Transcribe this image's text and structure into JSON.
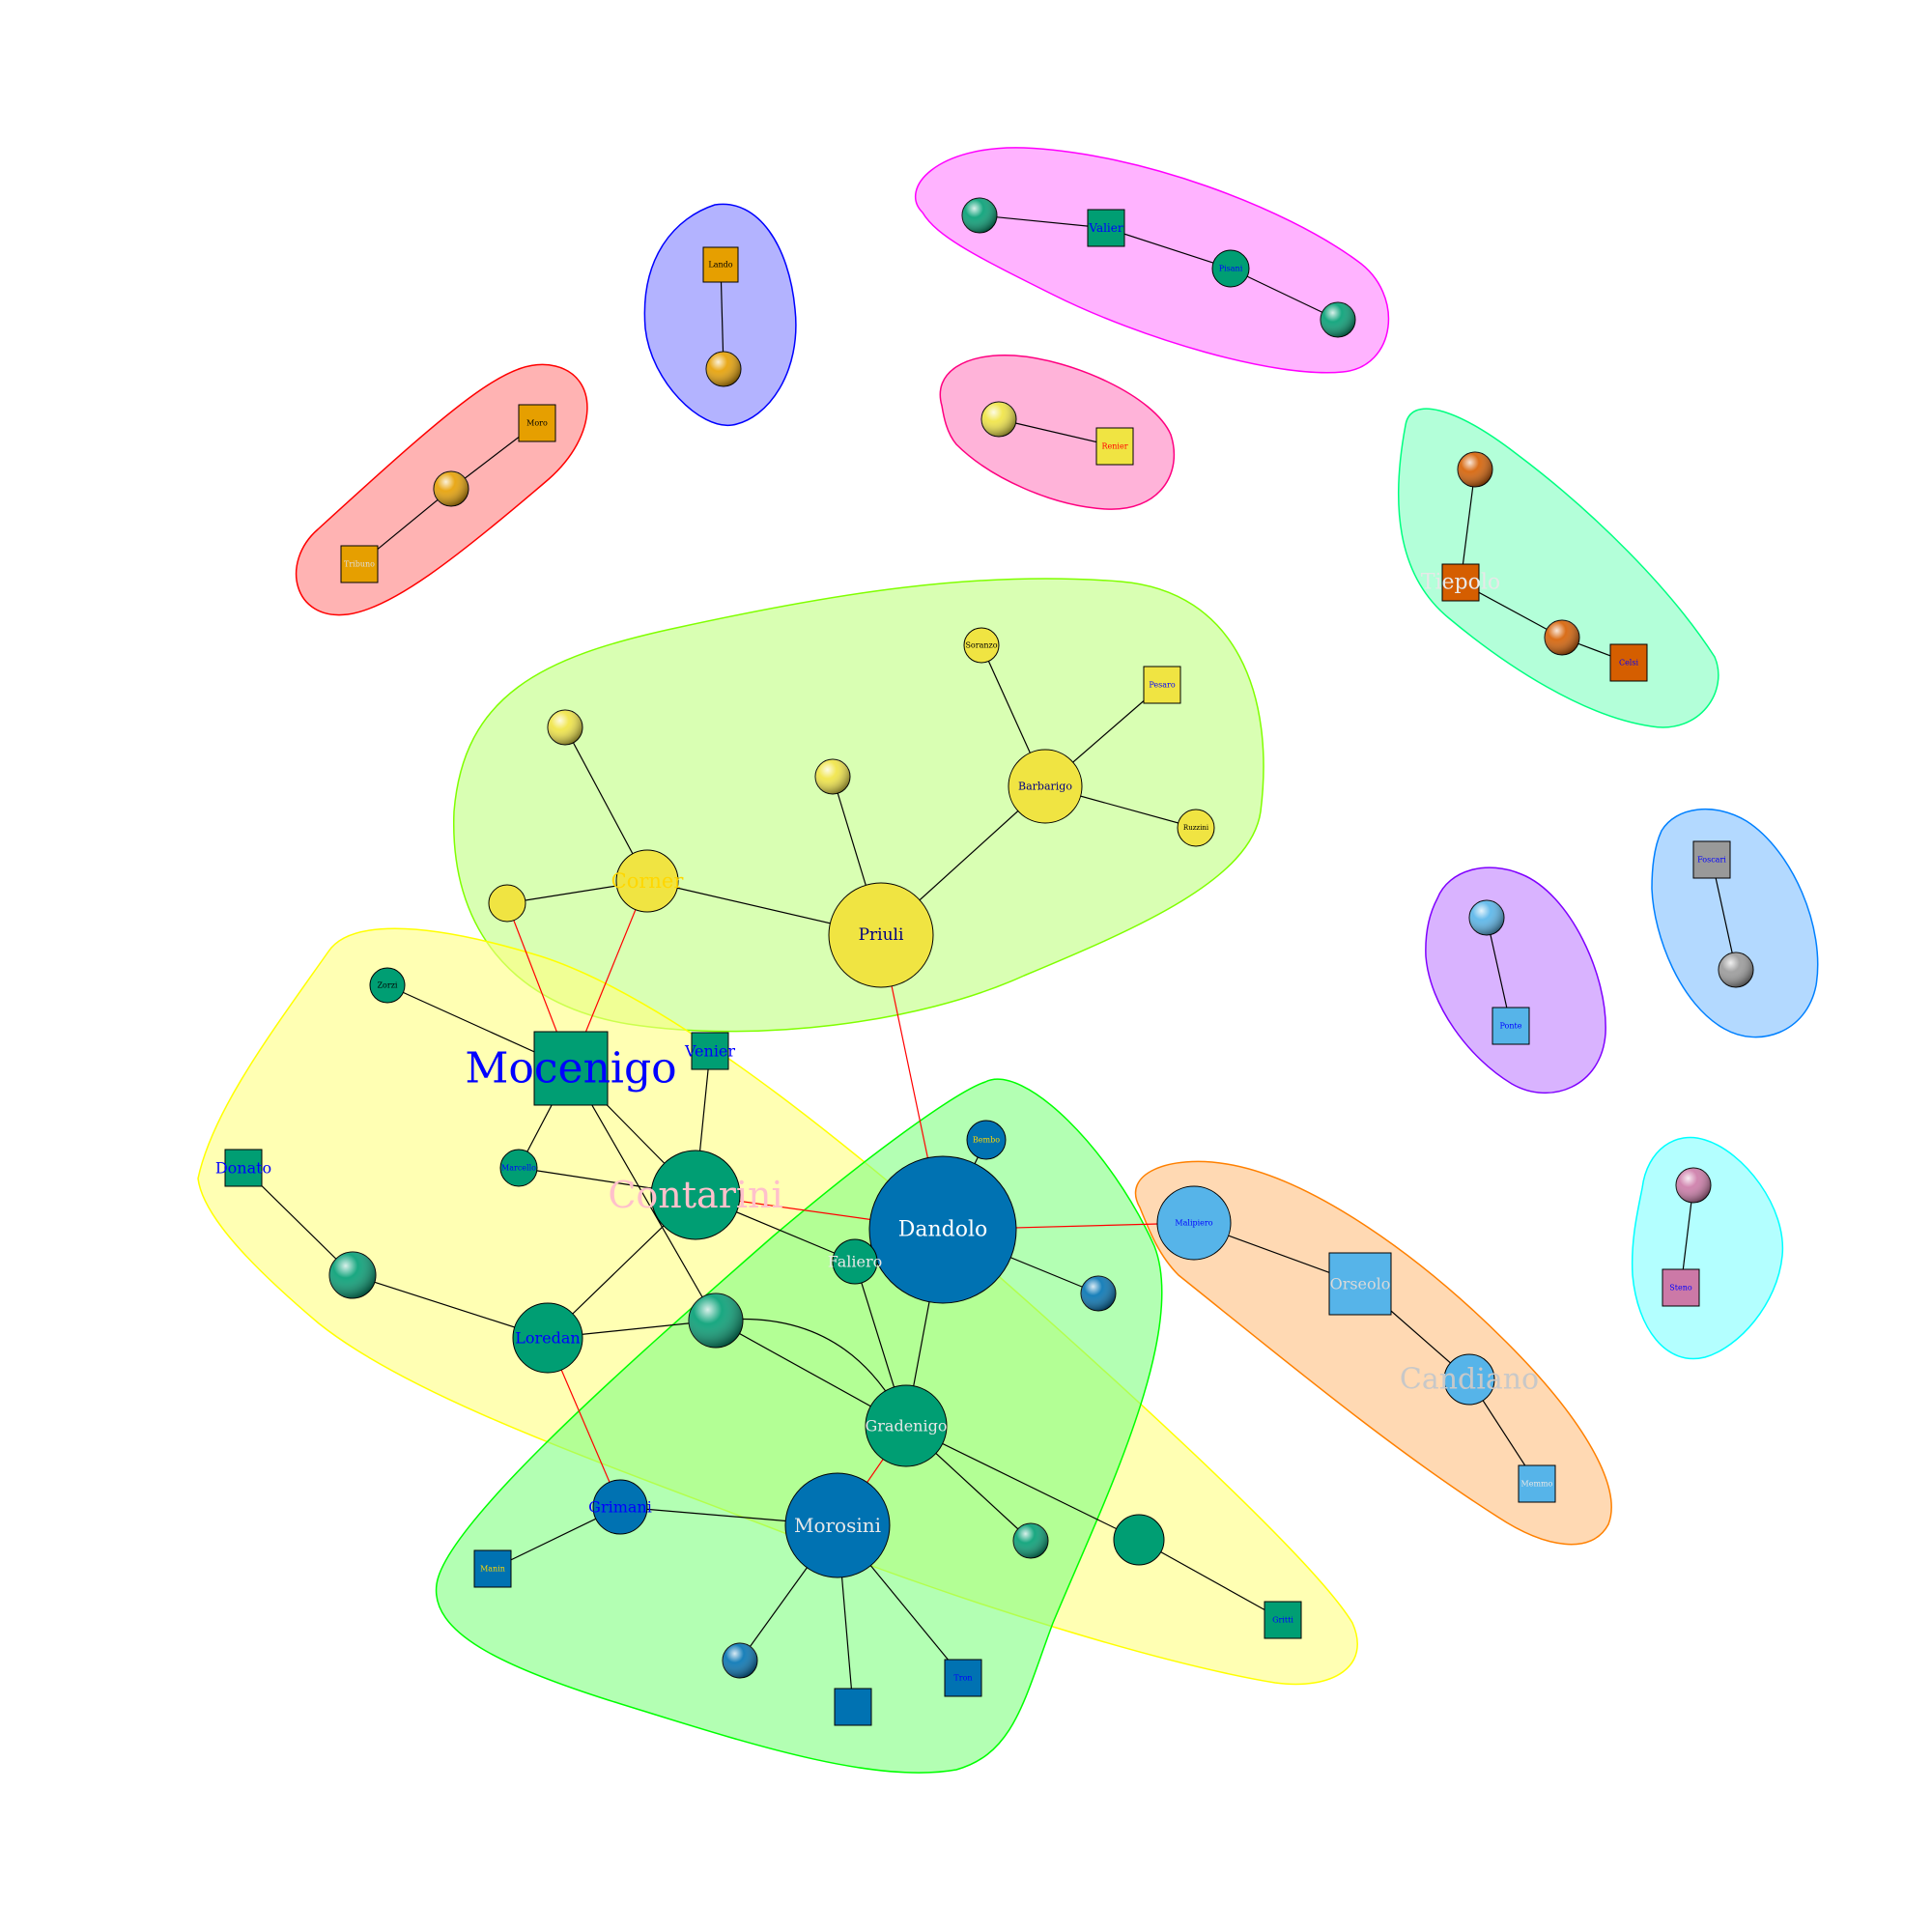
{
  "groups": [
    {
      "id": "g-red",
      "fill": "#ff8080",
      "stroke": "#ff0000"
    },
    {
      "id": "g-blue",
      "fill": "#8080ff",
      "stroke": "#0000ff"
    },
    {
      "id": "g-magenta",
      "fill": "#ff80ff",
      "stroke": "#ff00ff"
    },
    {
      "id": "g-pink",
      "fill": "#ff80c0",
      "stroke": "#ff0080"
    },
    {
      "id": "g-aqua",
      "fill": "#80ffc0",
      "stroke": "#00ff80"
    },
    {
      "id": "g-lime",
      "fill": "#c0ff80",
      "stroke": "#80ff00"
    },
    {
      "id": "g-yellow",
      "fill": "#ffff80",
      "stroke": "#ffff00"
    },
    {
      "id": "g-green",
      "fill": "#80ff80",
      "stroke": "#00ff00"
    },
    {
      "id": "g-orange",
      "fill": "#ffc080",
      "stroke": "#ff8000"
    },
    {
      "id": "g-purple",
      "fill": "#c080ff",
      "stroke": "#8000ff"
    },
    {
      "id": "g-sky",
      "fill": "#80c0ff",
      "stroke": "#0080ff"
    },
    {
      "id": "g-cyan",
      "fill": "#80ffff",
      "stroke": "#00ffff"
    }
  ],
  "nodes": [
    {
      "id": "moro",
      "label": "Moro",
      "shape": "square",
      "color": "#e69f00",
      "label_color": "#000000"
    },
    {
      "id": "red-ball",
      "label": "",
      "shape": "sphere",
      "color": "#e69f00",
      "label_color": "#000000"
    },
    {
      "id": "tribuno",
      "label": "Tribuno",
      "shape": "square",
      "color": "#e69f00",
      "label_color": "#dddddd"
    },
    {
      "id": "lando",
      "label": "Lando",
      "shape": "square",
      "color": "#e69f00",
      "label_color": "#000000"
    },
    {
      "id": "blue-ball",
      "label": "",
      "shape": "sphere",
      "color": "#e69f00",
      "label_color": "#000000"
    },
    {
      "id": "mag-ball-1",
      "label": "",
      "shape": "sphere",
      "color": "#009e73",
      "label_color": "#dddddd"
    },
    {
      "id": "valier",
      "label": "Valier",
      "shape": "square",
      "color": "#009e73",
      "label_color": "#0000ff"
    },
    {
      "id": "pisani",
      "label": "Pisani",
      "shape": "circle",
      "color": "#009e73",
      "label_color": "#0000ff"
    },
    {
      "id": "mag-ball-2",
      "label": "",
      "shape": "sphere",
      "color": "#009e73",
      "label_color": "#dddddd"
    },
    {
      "id": "pink-ball",
      "label": "",
      "shape": "sphere",
      "color": "#f0e442",
      "label_color": "#dddddd"
    },
    {
      "id": "renier",
      "label": "Renier",
      "shape": "square",
      "color": "#f0e442",
      "label_color": "#ff0000"
    },
    {
      "id": "aqua-ball-1",
      "label": "",
      "shape": "sphere",
      "color": "#d55e00",
      "label_color": "#dddddd"
    },
    {
      "id": "tiepolo",
      "label": "Tiepolo",
      "shape": "square",
      "color": "#d55e00",
      "label_color": "#e8e8e8"
    },
    {
      "id": "aqua-ball-2",
      "label": "",
      "shape": "sphere",
      "color": "#d55e00",
      "label_color": "#dddddd"
    },
    {
      "id": "celsi",
      "label": "Celsi",
      "shape": "square",
      "color": "#d55e00",
      "label_color": "#0000ff"
    },
    {
      "id": "soranzo",
      "label": "Soranzo",
      "shape": "circle",
      "color": "#f0e442",
      "label_color": "#000000"
    },
    {
      "id": "pesaro",
      "label": "Pesaro",
      "shape": "square",
      "color": "#f0e442",
      "label_color": "#0000ff"
    },
    {
      "id": "lime-ball-1",
      "label": "",
      "shape": "sphere",
      "color": "#f0e442",
      "label_color": "#dddddd"
    },
    {
      "id": "lime-ball-2",
      "label": "",
      "shape": "sphere",
      "color": "#f0e442",
      "label_color": "#dddddd"
    },
    {
      "id": "barbarigo",
      "label": "Barbarigo",
      "shape": "circle",
      "color": "#f0e442",
      "label_color": "#000080"
    },
    {
      "id": "ruzzini",
      "label": "Ruzzini",
      "shape": "circle",
      "color": "#f0e442",
      "label_color": "#000000"
    },
    {
      "id": "lime-circle",
      "label": "",
      "shape": "circle",
      "color": "#f0e442",
      "label_color": "#000000"
    },
    {
      "id": "corner",
      "label": "Corner",
      "shape": "circle",
      "color": "#f0e442",
      "label_color": "#ffd700"
    },
    {
      "id": "priuli",
      "label": "Priuli",
      "shape": "circle",
      "color": "#f0e442",
      "label_color": "#000080"
    },
    {
      "id": "foscari",
      "label": "Foscari",
      "shape": "square",
      "color": "#999999",
      "label_color": "#0000ff"
    },
    {
      "id": "sky-ball",
      "label": "",
      "shape": "sphere",
      "color": "#999999",
      "label_color": "#dddddd"
    },
    {
      "id": "purple-ball",
      "label": "",
      "shape": "sphere",
      "color": "#56b4e9",
      "label_color": "#dddddd"
    },
    {
      "id": "ponte",
      "label": "Ponte",
      "shape": "square",
      "color": "#56b4e9",
      "label_color": "#0000ff"
    },
    {
      "id": "zorzi",
      "label": "Zorzi",
      "shape": "circle",
      "color": "#009e73",
      "label_color": "#000000"
    },
    {
      "id": "mocenigo",
      "label": "Mocenigo",
      "shape": "square",
      "color": "#009e73",
      "label_color": "#0000ff"
    },
    {
      "id": "venier",
      "label": "Venier",
      "shape": "square",
      "color": "#009e73",
      "label_color": "#0000ff"
    },
    {
      "id": "donato",
      "label": "Donato",
      "shape": "square",
      "color": "#009e73",
      "label_color": "#0000ff"
    },
    {
      "id": "marcello",
      "label": "Marcello",
      "shape": "circle",
      "color": "#009e73",
      "label_color": "#0000ff"
    },
    {
      "id": "contarini",
      "label": "Contarini",
      "shape": "circle",
      "color": "#009e73",
      "label_color": "#ffc0cb"
    },
    {
      "id": "bembo",
      "label": "Bembo",
      "shape": "circle",
      "color": "#0072b2",
      "label_color": "#ffd700"
    },
    {
      "id": "dandolo",
      "label": "Dandolo",
      "shape": "circle",
      "color": "#0072b2",
      "label_color": "#ffffff"
    },
    {
      "id": "malipiero",
      "label": "Malipiero",
      "shape": "circle",
      "color": "#56b4e9",
      "label_color": "#0000ff"
    },
    {
      "id": "yellow-ball",
      "label": "",
      "shape": "sphere",
      "color": "#009e73",
      "label_color": "#dddddd"
    },
    {
      "id": "faliero",
      "label": "Faliero",
      "shape": "circle",
      "color": "#009e73",
      "label_color": "#e8e8e8"
    },
    {
      "id": "green-ball-1",
      "label": "",
      "shape": "sphere",
      "color": "#0072b2",
      "label_color": "#dddddd"
    },
    {
      "id": "orseolo",
      "label": "Orseolo",
      "shape": "square",
      "color": "#56b4e9",
      "label_color": "#d9d9d9"
    },
    {
      "id": "loredan",
      "label": "Loredan",
      "shape": "circle",
      "color": "#009e73",
      "label_color": "#0000ff"
    },
    {
      "id": "center-ball",
      "label": "",
      "shape": "sphere",
      "color": "#009e73",
      "label_color": "#dddddd"
    },
    {
      "id": "candiano",
      "label": "Candiano",
      "shape": "circle",
      "color": "#56b4e9",
      "label_color": "#c8c8c8"
    },
    {
      "id": "gradenigo",
      "label": "Gradenigo",
      "shape": "circle",
      "color": "#009e73",
      "label_color": "#e8e8e8"
    },
    {
      "id": "memmo",
      "label": "Memmo",
      "shape": "square",
      "color": "#56b4e9",
      "label_color": "#e8e8e8"
    },
    {
      "id": "cyan-ball",
      "label": "",
      "shape": "sphere",
      "color": "#cc79a7",
      "label_color": "#dddddd"
    },
    {
      "id": "steno",
      "label": "Steno",
      "shape": "square",
      "color": "#cc79a7",
      "label_color": "#0000ff"
    },
    {
      "id": "grimani",
      "label": "Grimani",
      "shape": "circle",
      "color": "#0072b2",
      "label_color": "#0000ff"
    },
    {
      "id": "morosini",
      "label": "Morosini",
      "shape": "circle",
      "color": "#0072b2",
      "label_color": "#e8e8e8"
    },
    {
      "id": "gradenigo-ball",
      "label": "",
      "shape": "sphere",
      "color": "#009e73",
      "label_color": "#dddddd"
    },
    {
      "id": "unlabeled-circle",
      "label": "",
      "shape": "circle",
      "color": "#009e73",
      "label_color": "#000000"
    },
    {
      "id": "manin",
      "label": "Manin",
      "shape": "square",
      "color": "#0072b2",
      "label_color": "#ffd700"
    },
    {
      "id": "gritti",
      "label": "Gritti",
      "shape": "square",
      "color": "#009e73",
      "label_color": "#0000ff"
    },
    {
      "id": "morosini-ball",
      "label": "",
      "shape": "sphere",
      "color": "#0072b2",
      "label_color": "#dddddd"
    },
    {
      "id": "tron",
      "label": "Tron",
      "shape": "square",
      "color": "#0072b2",
      "label_color": "#0000ff"
    },
    {
      "id": "bottom-square",
      "label": "",
      "shape": "square",
      "color": "#0072b2",
      "label_color": "#ff0000"
    }
  ],
  "edges": [
    {
      "from": "moro",
      "to": "red-ball",
      "color": "#000000"
    },
    {
      "from": "red-ball",
      "to": "tribuno",
      "color": "#000000"
    },
    {
      "from": "lando",
      "to": "blue-ball",
      "color": "#000000"
    },
    {
      "from": "mag-ball-1",
      "to": "valier",
      "color": "#000000"
    },
    {
      "from": "valier",
      "to": "pisani",
      "color": "#000000"
    },
    {
      "from": "pisani",
      "to": "mag-ball-2",
      "color": "#000000"
    },
    {
      "from": "pink-ball",
      "to": "renier",
      "color": "#000000"
    },
    {
      "from": "aqua-ball-1",
      "to": "tiepolo",
      "color": "#000000"
    },
    {
      "from": "tiepolo",
      "to": "aqua-ball-2",
      "color": "#000000"
    },
    {
      "from": "aqua-ball-2",
      "to": "celsi",
      "color": "#000000"
    },
    {
      "from": "soranzo",
      "to": "barbarigo",
      "color": "#000000"
    },
    {
      "from": "pesaro",
      "to": "barbarigo",
      "color": "#000000"
    },
    {
      "from": "ruzzini",
      "to": "barbarigo",
      "color": "#000000"
    },
    {
      "from": "barbarigo",
      "to": "priuli",
      "color": "#000000"
    },
    {
      "from": "lime-ball-2",
      "to": "priuli",
      "color": "#000000"
    },
    {
      "from": "lime-ball-1",
      "to": "corner",
      "color": "#000000"
    },
    {
      "from": "lime-circle",
      "to": "corner",
      "color": "#000000"
    },
    {
      "from": "corner",
      "to": "priuli",
      "color": "#000000"
    },
    {
      "from": "foscari",
      "to": "sky-ball",
      "color": "#000000"
    },
    {
      "from": "purple-ball",
      "to": "ponte",
      "color": "#000000"
    },
    {
      "from": "cyan-ball",
      "to": "steno",
      "color": "#000000"
    },
    {
      "from": "lime-circle",
      "to": "mocenigo",
      "color": "#ff0000"
    },
    {
      "from": "corner",
      "to": "mocenigo",
      "color": "#ff0000"
    },
    {
      "from": "priuli",
      "to": "dandolo",
      "color": "#ff0000"
    },
    {
      "from": "zorzi",
      "to": "mocenigo",
      "color": "#000000"
    },
    {
      "from": "mocenigo",
      "to": "marcello",
      "color": "#000000"
    },
    {
      "from": "mocenigo",
      "to": "contarini",
      "color": "#000000"
    },
    {
      "from": "mocenigo",
      "to": "center-ball",
      "color": "#000000"
    },
    {
      "from": "venier",
      "to": "contarini",
      "color": "#000000"
    },
    {
      "from": "marcello",
      "to": "contarini",
      "color": "#000000"
    },
    {
      "from": "contarini",
      "to": "dandolo",
      "color": "#ff0000"
    },
    {
      "from": "contarini",
      "to": "faliero",
      "color": "#000000"
    },
    {
      "from": "contarini",
      "to": "loredan",
      "color": "#000000"
    },
    {
      "from": "donato",
      "to": "yellow-ball",
      "color": "#000000"
    },
    {
      "from": "yellow-ball",
      "to": "loredan",
      "color": "#000000"
    },
    {
      "from": "loredan",
      "to": "center-ball",
      "color": "#000000"
    },
    {
      "from": "loredan",
      "to": "grimani",
      "color": "#ff0000"
    },
    {
      "from": "bembo",
      "to": "dandolo",
      "color": "#000000"
    },
    {
      "from": "dandolo",
      "to": "green-ball-1",
      "color": "#000000"
    },
    {
      "from": "dandolo",
      "to": "gradenigo",
      "color": "#000000"
    },
    {
      "from": "dandolo",
      "to": "malipiero",
      "color": "#ff0000"
    },
    {
      "from": "faliero",
      "to": "gradenigo",
      "color": "#000000"
    },
    {
      "from": "center-ball",
      "to": "gradenigo",
      "color": "#000000"
    },
    {
      "from": "center-ball",
      "to": "gradenigo",
      "color": "#000000"
    },
    {
      "from": "malipiero",
      "to": "orseolo",
      "color": "#000000"
    },
    {
      "from": "orseolo",
      "to": "candiano",
      "color": "#000000"
    },
    {
      "from": "candiano",
      "to": "memmo",
      "color": "#000000"
    },
    {
      "from": "gradenigo",
      "to": "morosini",
      "color": "#ff0000"
    },
    {
      "from": "gradenigo",
      "to": "gradenigo-ball",
      "color": "#000000"
    },
    {
      "from": "gradenigo",
      "to": "unlabeled-circle",
      "color": "#000000"
    },
    {
      "from": "unlabeled-circle",
      "to": "gritti",
      "color": "#000000"
    },
    {
      "from": "grimani",
      "to": "manin",
      "color": "#000000"
    },
    {
      "from": "grimani",
      "to": "morosini",
      "color": "#000000"
    },
    {
      "from": "morosini",
      "to": "morosini-ball",
      "color": "#000000"
    },
    {
      "from": "morosini",
      "to": "bottom-square",
      "color": "#000000"
    },
    {
      "from": "morosini",
      "to": "tron",
      "color": "#000000"
    }
  ]
}
